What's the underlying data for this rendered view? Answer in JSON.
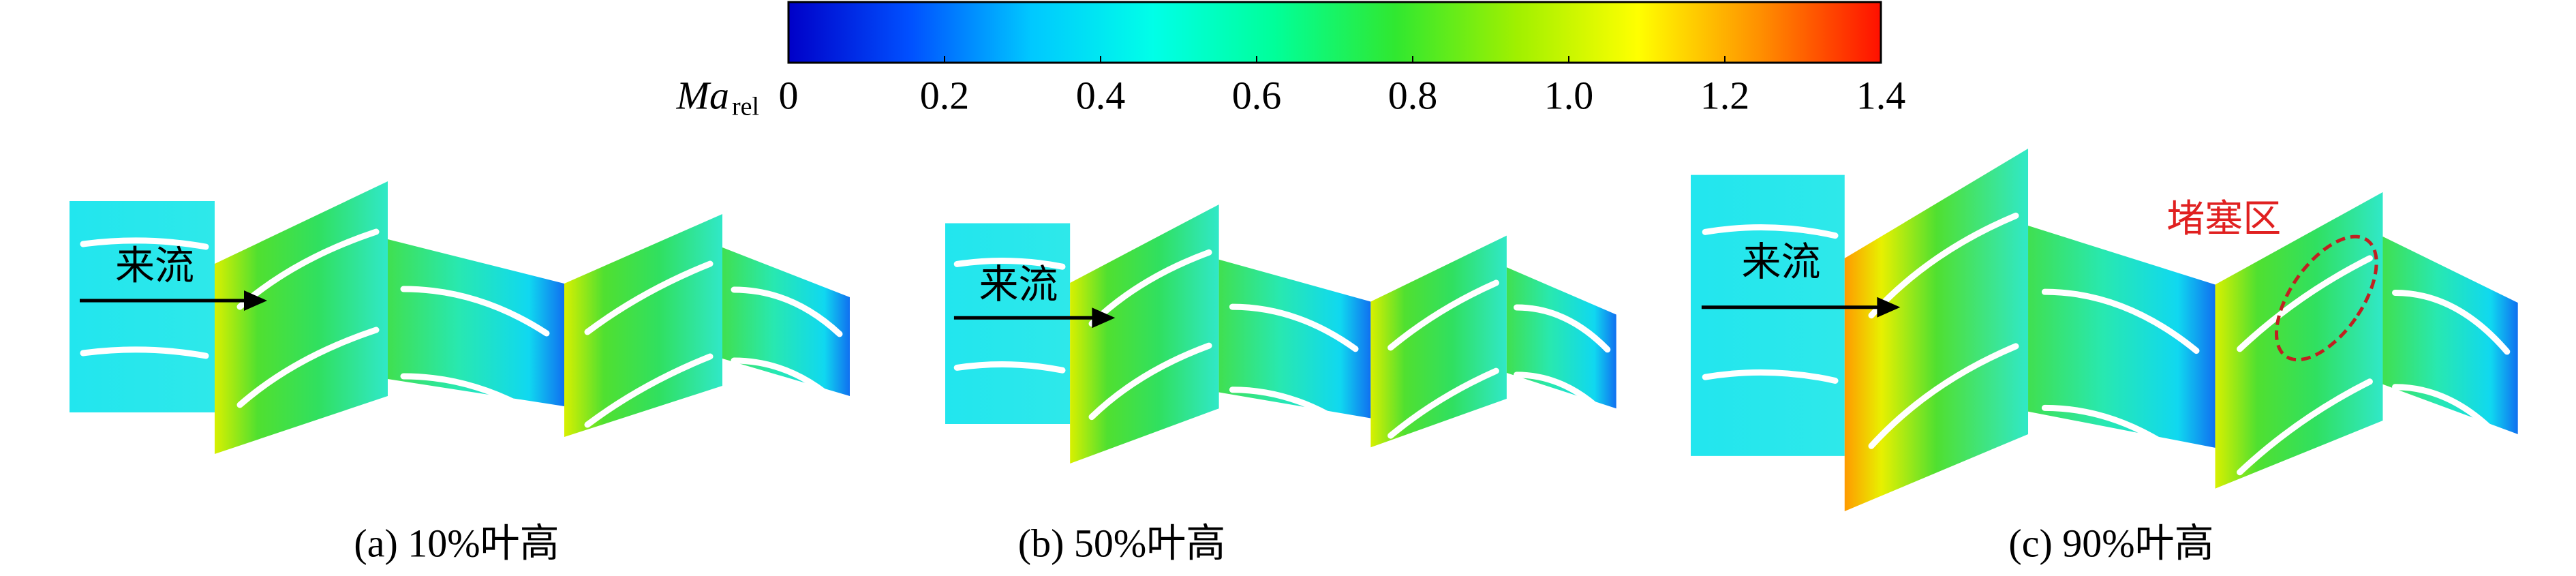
{
  "colorbar": {
    "label": "Ma",
    "label_subscript": "rel",
    "lim": [
      0,
      1.4
    ],
    "ticks": [
      0,
      0.2,
      0.4,
      0.6,
      0.8,
      {
        "value": 1,
        "label": "1.0"
      },
      1.2,
      1.4
    ],
    "colors": [
      "#0000c8",
      "#0050ff",
      "#00c8ff",
      "#00ffe8",
      "#00ff9a",
      "#30e830",
      "#a0f000",
      "#ffff00",
      "#ff9000",
      "#ff1000"
    ]
  },
  "panels": [
    {
      "caption": "(a) 10%叶高",
      "inlet_label": "来流"
    },
    {
      "caption": "(b) 50%叶高",
      "inlet_label": "来流"
    },
    {
      "caption": "(c) 90%叶高",
      "inlet_label": "来流",
      "annotation": "堵塞区"
    }
  ]
}
